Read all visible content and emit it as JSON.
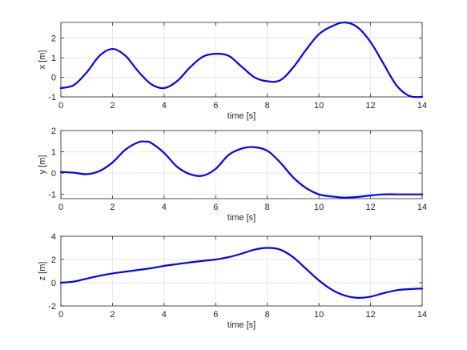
{
  "chart_data": [
    {
      "type": "line",
      "xlabel": "time [s]",
      "ylabel": "x [m]",
      "xlim": [
        0,
        14
      ],
      "ylim": [
        -1,
        2.8
      ],
      "xticks": [
        0,
        2,
        4,
        6,
        8,
        10,
        12,
        14
      ],
      "yticks": [
        -1,
        0,
        1,
        2
      ],
      "grid": true,
      "series": [
        {
          "color": "#0000ff",
          "x": [
            0,
            0.5,
            1,
            1.5,
            2,
            2.5,
            3,
            3.5,
            4,
            4.5,
            5,
            5.5,
            6,
            6.5,
            7,
            7.5,
            8,
            8.5,
            9,
            9.5,
            10,
            10.5,
            11,
            11.5,
            12,
            12.5,
            13,
            13.5,
            14
          ],
          "y": [
            -0.55,
            -0.4,
            0.25,
            1.1,
            1.45,
            1.1,
            0.3,
            -0.35,
            -0.55,
            -0.2,
            0.5,
            1.05,
            1.2,
            1.1,
            0.55,
            0.0,
            -0.2,
            -0.15,
            0.5,
            1.4,
            2.2,
            2.6,
            2.8,
            2.55,
            1.8,
            0.7,
            -0.4,
            -0.95,
            -1.0
          ]
        }
      ]
    },
    {
      "type": "line",
      "xlabel": "time [s]",
      "ylabel": "y [m]",
      "xlim": [
        0,
        14
      ],
      "ylim": [
        -1.2,
        2
      ],
      "xticks": [
        0,
        2,
        4,
        6,
        8,
        10,
        12,
        14
      ],
      "yticks": [
        -1,
        0,
        1,
        2
      ],
      "grid": true,
      "series": [
        {
          "color": "#0000ff",
          "x": [
            0,
            0.5,
            1,
            1.5,
            2,
            2.5,
            3,
            3.3,
            3.5,
            4,
            4.5,
            5,
            5.5,
            6,
            6.5,
            7,
            7.5,
            8,
            8.5,
            9,
            9.5,
            10,
            10.5,
            11,
            11.5,
            12,
            12.5,
            13,
            13.5,
            14
          ],
          "y": [
            0.05,
            0.02,
            -0.05,
            0.1,
            0.5,
            1.1,
            1.45,
            1.48,
            1.42,
            0.95,
            0.3,
            -0.05,
            -0.12,
            0.2,
            0.85,
            1.15,
            1.22,
            1.05,
            0.5,
            -0.2,
            -0.7,
            -1.0,
            -1.1,
            -1.15,
            -1.12,
            -1.05,
            -1.0,
            -1.0,
            -1.0,
            -1.0
          ]
        }
      ]
    },
    {
      "type": "line",
      "xlabel": "time [s]",
      "ylabel": "z [m]",
      "xlim": [
        0,
        14
      ],
      "ylim": [
        -2,
        4
      ],
      "xticks": [
        0,
        2,
        4,
        6,
        8,
        10,
        12,
        14
      ],
      "yticks": [
        -2,
        0,
        2,
        4
      ],
      "grid": true,
      "series": [
        {
          "color": "#0000ff",
          "x": [
            0,
            0.5,
            1,
            1.5,
            2,
            2.5,
            3,
            3.5,
            4,
            4.5,
            5,
            5.5,
            6,
            6.5,
            7,
            7.5,
            8,
            8.5,
            9,
            9.5,
            10,
            10.5,
            11,
            11.5,
            12,
            12.5,
            13,
            13.5,
            14
          ],
          "y": [
            0.0,
            0.1,
            0.35,
            0.6,
            0.8,
            0.95,
            1.1,
            1.25,
            1.45,
            1.6,
            1.75,
            1.88,
            2.0,
            2.2,
            2.5,
            2.85,
            3.0,
            2.85,
            2.2,
            1.2,
            0.2,
            -0.6,
            -1.1,
            -1.3,
            -1.2,
            -0.9,
            -0.65,
            -0.55,
            -0.5
          ]
        }
      ]
    }
  ]
}
